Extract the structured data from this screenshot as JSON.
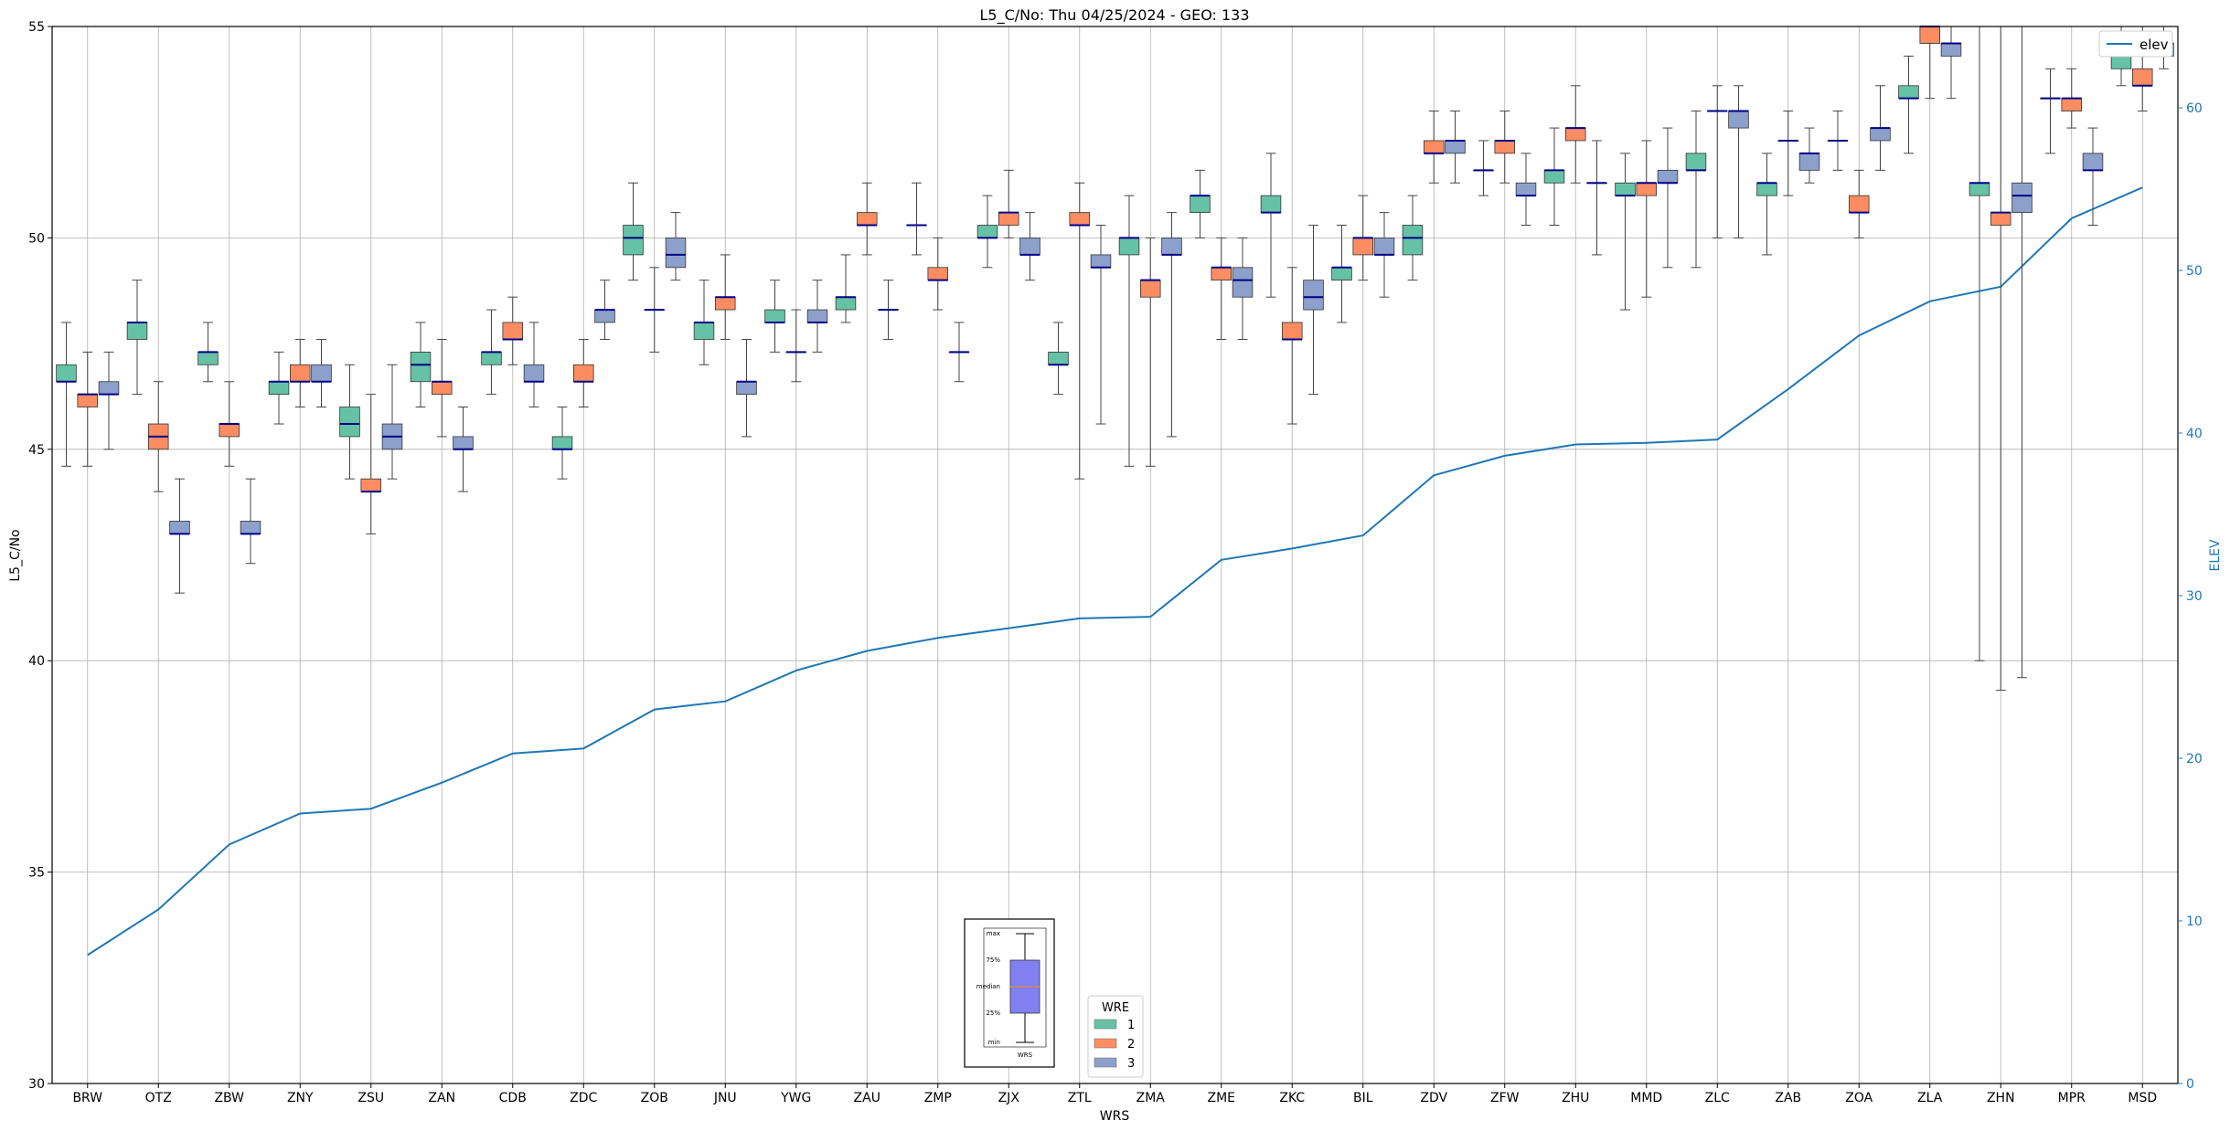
{
  "chart_data": {
    "type": "box",
    "title": "L5_C/No: Thu 04/25/2024 - GEO: 133",
    "xlabel": "WRS",
    "ylabel": "L5_C/No",
    "y2label": "ELEV",
    "ylim": [
      30,
      55
    ],
    "y2lim": [
      0,
      65
    ],
    "yticks": [
      "30",
      "35",
      "40",
      "45",
      "50",
      "55"
    ],
    "y2ticks": [
      "0",
      "10",
      "20",
      "30",
      "40",
      "50",
      "60"
    ],
    "grid": true,
    "categories": [
      "BRW",
      "OTZ",
      "ZBW",
      "ZNY",
      "ZSU",
      "ZAN",
      "CDB",
      "ZDC",
      "ZOB",
      "JNU",
      "YWG",
      "ZAU",
      "ZMP",
      "ZJX",
      "ZTL",
      "ZMA",
      "ZME",
      "ZKC",
      "BIL",
      "ZDV",
      "ZFW",
      "ZHU",
      "MMD",
      "ZLC",
      "ZAB",
      "ZOA",
      "ZLA",
      "ZHN",
      "MPR",
      "MSD"
    ],
    "legend": {
      "title": "WRE",
      "placement": "bottom-center",
      "entries": [
        "1",
        "2",
        "3"
      ]
    },
    "colors": {
      "wre1": "#66c2a5",
      "wre2": "#fc8d62",
      "wre3": "#8da0cb",
      "median": "#00008b",
      "elev": "#1f77b4",
      "grid": "#b0b0b0"
    },
    "wre_series": [
      {
        "name": "1",
        "boxes": [
          {
            "min": 44.6,
            "q1": 46.6,
            "median": 46.6,
            "q3": 47.0,
            "max": 48.0
          },
          {
            "min": 46.3,
            "q1": 47.6,
            "median": 48.0,
            "q3": 48.0,
            "max": 49.0
          },
          {
            "min": 46.6,
            "q1": 47.0,
            "median": 47.3,
            "q3": 47.3,
            "max": 48.0
          },
          {
            "min": 45.6,
            "q1": 46.3,
            "median": 46.6,
            "q3": 46.6,
            "max": 47.3
          },
          {
            "min": 44.3,
            "q1": 45.3,
            "median": 45.6,
            "q3": 46.0,
            "max": 47.0
          },
          {
            "min": 46.0,
            "q1": 46.6,
            "median": 47.0,
            "q3": 47.3,
            "max": 48.0
          },
          {
            "min": 46.3,
            "q1": 47.0,
            "median": 47.3,
            "q3": 47.3,
            "max": 48.3
          },
          {
            "min": 44.3,
            "q1": 45.0,
            "median": 45.0,
            "q3": 45.3,
            "max": 46.0
          },
          {
            "min": 49.0,
            "q1": 49.6,
            "median": 50.0,
            "q3": 50.3,
            "max": 51.3
          },
          {
            "min": 47.0,
            "q1": 47.6,
            "median": 48.0,
            "q3": 48.0,
            "max": 49.0
          },
          {
            "min": 47.3,
            "q1": 48.0,
            "median": 48.0,
            "q3": 48.3,
            "max": 49.0
          },
          {
            "min": 48.0,
            "q1": 48.3,
            "median": 48.6,
            "q3": 48.6,
            "max": 49.6
          },
          {
            "min": 49.6,
            "q1": 50.3,
            "median": 50.3,
            "q3": 50.3,
            "max": 51.3
          },
          {
            "min": 49.3,
            "q1": 50.0,
            "median": 50.0,
            "q3": 50.3,
            "max": 51.0
          },
          {
            "min": 46.3,
            "q1": 47.0,
            "median": 47.0,
            "q3": 47.3,
            "max": 48.0
          },
          {
            "min": 44.6,
            "q1": 49.6,
            "median": 50.0,
            "q3": 50.0,
            "max": 51.0
          },
          {
            "min": 50.0,
            "q1": 50.6,
            "median": 51.0,
            "q3": 51.0,
            "max": 51.6
          },
          {
            "min": 48.6,
            "q1": 50.6,
            "median": 50.6,
            "q3": 51.0,
            "max": 52.0
          },
          {
            "min": 48.0,
            "q1": 49.0,
            "median": 49.3,
            "q3": 49.3,
            "max": 50.3
          },
          {
            "min": 49.0,
            "q1": 49.6,
            "median": 50.0,
            "q3": 50.3,
            "max": 51.0
          },
          {
            "min": 51.0,
            "q1": 51.6,
            "median": 51.6,
            "q3": 51.6,
            "max": 52.3
          },
          {
            "min": 50.3,
            "q1": 51.3,
            "median": 51.6,
            "q3": 51.6,
            "max": 52.6
          },
          {
            "min": 48.3,
            "q1": 51.0,
            "median": 51.0,
            "q3": 51.3,
            "max": 52.0
          },
          {
            "min": 49.3,
            "q1": 51.6,
            "median": 51.6,
            "q3": 52.0,
            "max": 53.0
          },
          {
            "min": 49.6,
            "q1": 51.0,
            "median": 51.3,
            "q3": 51.3,
            "max": 52.0
          },
          {
            "min": 51.6,
            "q1": 52.3,
            "median": 52.3,
            "q3": 52.3,
            "max": 53.0
          },
          {
            "min": 52.0,
            "q1": 53.3,
            "median": 53.3,
            "q3": 53.6,
            "max": 54.3
          },
          {
            "min": 40.0,
            "q1": 51.0,
            "median": 51.3,
            "q3": 51.3,
            "max": 55.0
          },
          {
            "min": 52.0,
            "q1": 53.3,
            "median": 53.3,
            "q3": 53.3,
            "max": 54.0
          },
          {
            "min": 53.6,
            "q1": 54.0,
            "median": 54.3,
            "q3": 54.3,
            "max": 55.0
          }
        ]
      },
      {
        "name": "2",
        "boxes": [
          {
            "min": 44.6,
            "q1": 46.0,
            "median": 46.3,
            "q3": 46.3,
            "max": 47.3
          },
          {
            "min": 44.0,
            "q1": 45.0,
            "median": 45.3,
            "q3": 45.6,
            "max": 46.6
          },
          {
            "min": 44.6,
            "q1": 45.3,
            "median": 45.6,
            "q3": 45.6,
            "max": 46.6
          },
          {
            "min": 46.0,
            "q1": 46.6,
            "median": 46.6,
            "q3": 47.0,
            "max": 47.6
          },
          {
            "min": 43.0,
            "q1": 44.0,
            "median": 44.0,
            "q3": 44.3,
            "max": 46.3
          },
          {
            "min": 45.3,
            "q1": 46.3,
            "median": 46.6,
            "q3": 46.6,
            "max": 47.6
          },
          {
            "min": 47.0,
            "q1": 47.6,
            "median": 47.6,
            "q3": 48.0,
            "max": 48.6
          },
          {
            "min": 46.0,
            "q1": 46.6,
            "median": 46.6,
            "q3": 47.0,
            "max": 47.6
          },
          {
            "min": 47.3,
            "q1": 48.3,
            "median": 48.3,
            "q3": 48.3,
            "max": 49.3
          },
          {
            "min": 47.6,
            "q1": 48.3,
            "median": 48.6,
            "q3": 48.6,
            "max": 49.6
          },
          {
            "min": 46.6,
            "q1": 47.3,
            "median": 47.3,
            "q3": 47.3,
            "max": 48.3
          },
          {
            "min": 49.6,
            "q1": 50.3,
            "median": 50.3,
            "q3": 50.6,
            "max": 51.3
          },
          {
            "min": 48.3,
            "q1": 49.0,
            "median": 49.0,
            "q3": 49.3,
            "max": 50.0
          },
          {
            "min": 50.0,
            "q1": 50.3,
            "median": 50.6,
            "q3": 50.6,
            "max": 51.6
          },
          {
            "min": 44.3,
            "q1": 50.3,
            "median": 50.3,
            "q3": 50.6,
            "max": 51.3
          },
          {
            "min": 44.6,
            "q1": 48.6,
            "median": 49.0,
            "q3": 49.0,
            "max": 50.0
          },
          {
            "min": 47.6,
            "q1": 49.0,
            "median": 49.3,
            "q3": 49.3,
            "max": 50.0
          },
          {
            "min": 45.6,
            "q1": 47.6,
            "median": 47.6,
            "q3": 48.0,
            "max": 49.3
          },
          {
            "min": 49.0,
            "q1": 49.6,
            "median": 50.0,
            "q3": 50.0,
            "max": 51.0
          },
          {
            "min": 51.3,
            "q1": 52.0,
            "median": 52.0,
            "q3": 52.3,
            "max": 53.0
          },
          {
            "min": 51.3,
            "q1": 52.0,
            "median": 52.3,
            "q3": 52.3,
            "max": 53.0
          },
          {
            "min": 51.3,
            "q1": 52.3,
            "median": 52.6,
            "q3": 52.6,
            "max": 53.6
          },
          {
            "min": 48.6,
            "q1": 51.0,
            "median": 51.3,
            "q3": 51.3,
            "max": 52.3
          },
          {
            "min": 50.0,
            "q1": 53.0,
            "median": 53.0,
            "q3": 53.0,
            "max": 53.6
          },
          {
            "min": 51.0,
            "q1": 52.3,
            "median": 52.3,
            "q3": 52.3,
            "max": 53.0
          },
          {
            "min": 50.0,
            "q1": 50.6,
            "median": 50.6,
            "q3": 51.0,
            "max": 51.6
          },
          {
            "min": 53.3,
            "q1": 54.6,
            "median": 55.0,
            "q3": 55.0,
            "max": 55.0
          },
          {
            "min": 39.3,
            "q1": 50.3,
            "median": 50.6,
            "q3": 50.6,
            "max": 55.0
          },
          {
            "min": 52.6,
            "q1": 53.0,
            "median": 53.3,
            "q3": 53.3,
            "max": 54.0
          },
          {
            "min": 53.0,
            "q1": 53.6,
            "median": 53.6,
            "q3": 54.0,
            "max": 55.0
          }
        ]
      },
      {
        "name": "3",
        "boxes": [
          {
            "min": 45.0,
            "q1": 46.3,
            "median": 46.3,
            "q3": 46.6,
            "max": 47.3
          },
          {
            "min": 41.6,
            "q1": 43.0,
            "median": 43.0,
            "q3": 43.3,
            "max": 44.3
          },
          {
            "min": 42.3,
            "q1": 43.0,
            "median": 43.0,
            "q3": 43.3,
            "max": 44.3
          },
          {
            "min": 46.0,
            "q1": 46.6,
            "median": 46.6,
            "q3": 47.0,
            "max": 47.6
          },
          {
            "min": 44.3,
            "q1": 45.0,
            "median": 45.3,
            "q3": 45.6,
            "max": 47.0
          },
          {
            "min": 44.0,
            "q1": 45.0,
            "median": 45.0,
            "q3": 45.3,
            "max": 46.0
          },
          {
            "min": 46.0,
            "q1": 46.6,
            "median": 46.6,
            "q3": 47.0,
            "max": 48.0
          },
          {
            "min": 47.6,
            "q1": 48.0,
            "median": 48.3,
            "q3": 48.3,
            "max": 49.0
          },
          {
            "min": 49.0,
            "q1": 49.3,
            "median": 49.6,
            "q3": 50.0,
            "max": 50.6
          },
          {
            "min": 45.3,
            "q1": 46.3,
            "median": 46.6,
            "q3": 46.6,
            "max": 47.6
          },
          {
            "min": 47.3,
            "q1": 48.0,
            "median": 48.0,
            "q3": 48.3,
            "max": 49.0
          },
          {
            "min": 47.6,
            "q1": 48.3,
            "median": 48.3,
            "q3": 48.3,
            "max": 49.0
          },
          {
            "min": 46.6,
            "q1": 47.3,
            "median": 47.3,
            "q3": 47.3,
            "max": 48.0
          },
          {
            "min": 49.0,
            "q1": 49.6,
            "median": 49.6,
            "q3": 50.0,
            "max": 50.6
          },
          {
            "min": 45.6,
            "q1": 49.3,
            "median": 49.3,
            "q3": 49.6,
            "max": 50.3
          },
          {
            "min": 45.3,
            "q1": 49.6,
            "median": 49.6,
            "q3": 50.0,
            "max": 50.6
          },
          {
            "min": 47.6,
            "q1": 48.6,
            "median": 49.0,
            "q3": 49.3,
            "max": 50.0
          },
          {
            "min": 46.3,
            "q1": 48.3,
            "median": 48.6,
            "q3": 49.0,
            "max": 50.3
          },
          {
            "min": 48.6,
            "q1": 49.6,
            "median": 49.6,
            "q3": 50.0,
            "max": 50.6
          },
          {
            "min": 51.3,
            "q1": 52.0,
            "median": 52.3,
            "q3": 52.3,
            "max": 53.0
          },
          {
            "min": 50.3,
            "q1": 51.0,
            "median": 51.0,
            "q3": 51.3,
            "max": 52.0
          },
          {
            "min": 49.6,
            "q1": 51.3,
            "median": 51.3,
            "q3": 51.3,
            "max": 52.3
          },
          {
            "min": 49.3,
            "q1": 51.3,
            "median": 51.3,
            "q3": 51.6,
            "max": 52.6
          },
          {
            "min": 50.0,
            "q1": 52.6,
            "median": 53.0,
            "q3": 53.0,
            "max": 53.6
          },
          {
            "min": 51.3,
            "q1": 51.6,
            "median": 52.0,
            "q3": 52.0,
            "max": 52.6
          },
          {
            "min": 51.6,
            "q1": 52.3,
            "median": 52.6,
            "q3": 52.6,
            "max": 53.6
          },
          {
            "min": 53.3,
            "q1": 54.3,
            "median": 54.6,
            "q3": 54.6,
            "max": 55.0
          },
          {
            "min": 39.6,
            "q1": 50.6,
            "median": 51.0,
            "q3": 51.3,
            "max": 55.0
          },
          {
            "min": 50.3,
            "q1": 51.6,
            "median": 51.6,
            "q3": 52.0,
            "max": 52.6
          },
          {
            "min": 54.0,
            "q1": 54.3,
            "median": 54.6,
            "q3": 54.6,
            "max": 55.0
          }
        ]
      }
    ],
    "elev_series": {
      "name": "elev",
      "values": [
        7.9,
        10.7,
        14.7,
        16.6,
        16.9,
        18.5,
        20.3,
        20.6,
        23.0,
        23.5,
        25.4,
        26.6,
        27.4,
        28.0,
        28.6,
        28.7,
        32.2,
        32.9,
        33.7,
        37.4,
        38.6,
        39.3,
        39.4,
        39.6,
        42.7,
        46.0,
        48.1,
        49.0,
        53.2,
        55.1
      ]
    },
    "inset_legend": {
      "labels": [
        "max",
        "75%",
        "median",
        "25%",
        "min"
      ],
      "xlabel": "WRS"
    }
  }
}
